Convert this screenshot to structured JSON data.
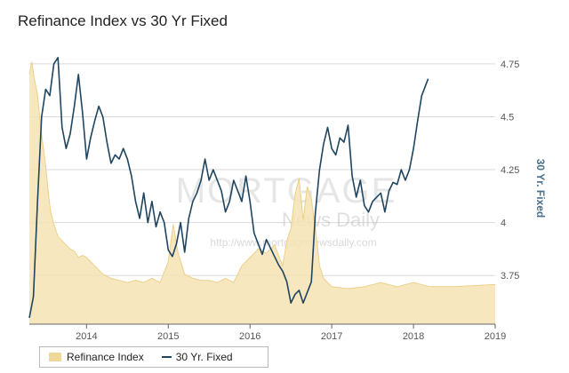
{
  "page": {
    "title": "Refinance Index vs 30 Yr Fixed"
  },
  "watermark": {
    "line1": "MORTGAGE",
    "line2": "News Daily",
    "line3": "http://www.mortgagenewsdaily.com"
  },
  "colors": {
    "refi_fill": "#f5e3b3",
    "refi_line": "#ecd08a",
    "rate_line": "#1f4560",
    "grid": "#d9d9d9",
    "axis_title": "#4d6f8c"
  },
  "chart_data": {
    "type": "area",
    "title": "Refinance Index vs 30 Yr Fixed",
    "x_range": [
      2013.3,
      2019.0
    ],
    "x_ticks": [
      "2014",
      "2015",
      "2016",
      "2017",
      "2018",
      "2019"
    ],
    "y_right_label": "30 Yr. Fixed",
    "y_right_ticks": [
      "3.75",
      "4",
      "4.25",
      "4.5",
      "4.75"
    ],
    "y_right_range": [
      3.52,
      4.8
    ],
    "series": [
      {
        "name": "Refinance Index",
        "type": "area",
        "axis": "hidden",
        "x": [
          2013.3,
          2013.33,
          2013.36,
          2013.4,
          2013.43,
          2013.46,
          2013.5,
          2013.53,
          2013.56,
          2013.6,
          2013.65,
          2013.7,
          2013.75,
          2013.8,
          2013.85,
          2013.9,
          2013.95,
          2014.0,
          2014.1,
          2014.2,
          2014.3,
          2014.4,
          2014.5,
          2014.6,
          2014.7,
          2014.8,
          2014.9,
          2015.0,
          2015.06,
          2015.12,
          2015.2,
          2015.3,
          2015.4,
          2015.5,
          2015.6,
          2015.7,
          2015.8,
          2015.9,
          2016.0,
          2016.1,
          2016.2,
          2016.3,
          2016.4,
          2016.45,
          2016.5,
          2016.55,
          2016.6,
          2016.65,
          2016.7,
          2016.75,
          2016.8,
          2016.85,
          2016.9,
          2016.95,
          2017.0,
          2017.2,
          2017.4,
          2017.6,
          2017.8,
          2018.0,
          2018.2,
          2018.5,
          2019.0
        ],
        "values": [
          6.0,
          6.3,
          5.9,
          5.5,
          4.9,
          4.4,
          3.8,
          3.2,
          2.7,
          2.4,
          2.1,
          2.0,
          1.9,
          1.8,
          1.75,
          1.6,
          1.65,
          1.6,
          1.4,
          1.2,
          1.1,
          1.05,
          1.0,
          1.05,
          1.0,
          1.1,
          1.0,
          1.5,
          2.4,
          1.7,
          1.2,
          1.1,
          1.05,
          1.05,
          1.0,
          1.1,
          1.0,
          1.4,
          1.6,
          1.8,
          1.7,
          1.9,
          1.4,
          2.0,
          2.3,
          3.1,
          3.5,
          2.5,
          3.3,
          3.0,
          2.3,
          1.4,
          1.1,
          1.0,
          0.9,
          0.85,
          0.9,
          1.0,
          0.9,
          1.0,
          0.9,
          0.9,
          0.95
        ]
      },
      {
        "name": "30 Yr. Fixed",
        "type": "line",
        "axis": "right",
        "x": [
          2013.3,
          2013.35,
          2013.4,
          2013.45,
          2013.5,
          2013.55,
          2013.6,
          2013.65,
          2013.7,
          2013.75,
          2013.8,
          2013.85,
          2013.9,
          2013.95,
          2014.0,
          2014.05,
          2014.1,
          2014.15,
          2014.2,
          2014.25,
          2014.3,
          2014.35,
          2014.4,
          2014.45,
          2014.5,
          2014.55,
          2014.6,
          2014.65,
          2014.7,
          2014.75,
          2014.8,
          2014.85,
          2014.9,
          2014.95,
          2015.0,
          2015.05,
          2015.1,
          2015.15,
          2015.2,
          2015.25,
          2015.3,
          2015.35,
          2015.4,
          2015.45,
          2015.5,
          2015.55,
          2015.6,
          2015.65,
          2015.7,
          2015.75,
          2015.8,
          2015.85,
          2015.9,
          2015.95,
          2016.0,
          2016.05,
          2016.1,
          2016.15,
          2016.2,
          2016.25,
          2016.3,
          2016.35,
          2016.4,
          2016.45,
          2016.5,
          2016.55,
          2016.6,
          2016.65,
          2016.7,
          2016.75,
          2016.8,
          2016.85,
          2016.9,
          2016.95,
          2017.0,
          2017.05,
          2017.1,
          2017.15,
          2017.2,
          2017.25,
          2017.3,
          2017.35,
          2017.4,
          2017.45,
          2017.5,
          2017.55,
          2017.6,
          2017.65,
          2017.7,
          2017.75,
          2017.8,
          2017.85,
          2017.9,
          2017.95,
          2018.0,
          2018.05,
          2018.1,
          2018.15,
          2018.18
        ],
        "values": [
          3.55,
          3.65,
          4.1,
          4.5,
          4.63,
          4.6,
          4.75,
          4.78,
          4.45,
          4.35,
          4.42,
          4.55,
          4.7,
          4.52,
          4.3,
          4.4,
          4.48,
          4.55,
          4.5,
          4.38,
          4.28,
          4.32,
          4.3,
          4.35,
          4.3,
          4.22,
          4.1,
          4.02,
          4.14,
          4.0,
          4.1,
          3.98,
          4.05,
          4.0,
          3.87,
          3.84,
          3.9,
          4.0,
          3.86,
          4.02,
          4.1,
          4.14,
          4.2,
          4.3,
          4.2,
          4.25,
          4.2,
          4.15,
          4.05,
          4.1,
          4.2,
          4.15,
          4.1,
          4.22,
          4.1,
          3.95,
          3.9,
          3.85,
          3.92,
          3.88,
          3.84,
          3.8,
          3.77,
          3.72,
          3.62,
          3.66,
          3.68,
          3.62,
          3.67,
          3.72,
          4.05,
          4.25,
          4.37,
          4.45,
          4.35,
          4.32,
          4.4,
          4.38,
          4.46,
          4.22,
          4.12,
          4.2,
          4.08,
          4.05,
          4.1,
          4.12,
          4.14,
          4.05,
          4.15,
          4.19,
          4.18,
          4.25,
          4.2,
          4.25,
          4.35,
          4.48,
          4.6,
          4.65,
          4.68
        ]
      }
    ],
    "grid": true,
    "legend_position": "bottom-left"
  }
}
